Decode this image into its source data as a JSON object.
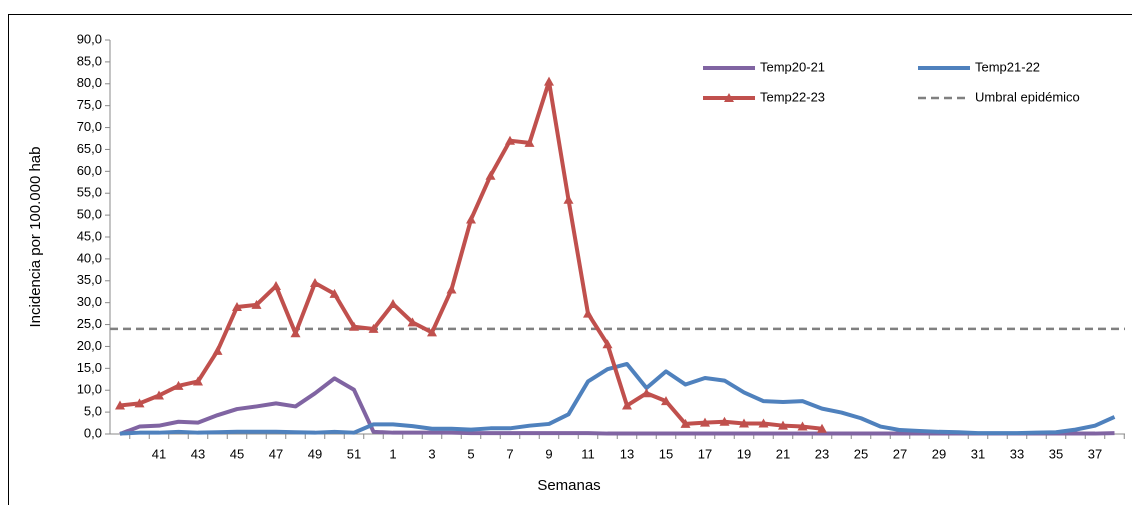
{
  "chart_data": {
    "type": "line",
    "xlabel": "Semanas",
    "ylabel": "Incidencia por 100.000 hab",
    "categories": [
      null,
      null,
      "41",
      null,
      "43",
      null,
      "45",
      null,
      "47",
      null,
      "49",
      null,
      "51",
      null,
      "1",
      null,
      "3",
      null,
      "5",
      null,
      "7",
      null,
      "9",
      null,
      "11",
      null,
      "13",
      null,
      "15",
      null,
      "17",
      null,
      "19",
      null,
      "21",
      null,
      "23",
      null,
      "25",
      null,
      "27",
      null,
      "29",
      null,
      "31",
      null,
      "33",
      null,
      "35",
      null,
      "37",
      null
    ],
    "series": [
      {
        "name": "Temp20-21",
        "color": "#8064a2",
        "marker": "none",
        "values": [
          0,
          1.7,
          1.9,
          2.8,
          2.6,
          4.3,
          5.7,
          6.3,
          7,
          6.3,
          9.3,
          12.7,
          10.1,
          0.5,
          0.3,
          0.3,
          0.3,
          0.3,
          0.2,
          0.2,
          0.2,
          0.2,
          0.2,
          0.2,
          0.2,
          0.1,
          0.1,
          0.1,
          0.1,
          0.1,
          0.1,
          0.1,
          0.1,
          0.1,
          0.1,
          0.1,
          0.1,
          0.1,
          0.1,
          0.1,
          0.1,
          0.1,
          0.1,
          0.1,
          0.1,
          0.1,
          0.1,
          0.1,
          0.1,
          0.1,
          0.1,
          0.2
        ]
      },
      {
        "name": "Temp21-22",
        "color": "#4f81bd",
        "marker": "none",
        "values": [
          0.1,
          0.3,
          0.3,
          0.5,
          0.3,
          0.4,
          0.5,
          0.5,
          0.5,
          0.4,
          0.3,
          0.5,
          0.3,
          2.2,
          2.2,
          1.8,
          1.2,
          1.2,
          1.0,
          1.3,
          1.3,
          1.9,
          2.3,
          4.5,
          12,
          14.8,
          16,
          10.5,
          14.3,
          11.3,
          12.8,
          12.2,
          9.5,
          7.5,
          7.3,
          7.5,
          5.8,
          4.9,
          3.6,
          1.7,
          0.9,
          0.7,
          0.5,
          0.4,
          0.2,
          0.2,
          0.2,
          0.3,
          0.4,
          1.0,
          1.9,
          3.9
        ]
      },
      {
        "name": "Temp22-23",
        "color": "#c0504d",
        "marker": "triangle",
        "values": [
          6.5,
          7,
          8.8,
          11,
          12,
          19,
          29,
          29.5,
          33.8,
          23,
          34.5,
          32,
          24.5,
          24,
          29.7,
          25.5,
          23.2,
          33,
          49,
          59,
          67,
          66.5,
          80.5,
          53.5,
          27.5,
          20.5,
          6.5,
          9.3,
          7.5,
          2.3,
          2.6,
          2.8,
          2.4,
          2.4,
          1.9,
          1.7,
          1.2,
          null,
          null,
          null,
          null,
          null,
          null,
          null,
          null,
          null,
          null,
          null,
          null,
          null,
          null,
          null
        ]
      }
    ],
    "threshold": {
      "name": "Umbral epidémico",
      "value": 24,
      "color": "#808080"
    },
    "ylim": [
      0,
      90
    ],
    "yticks": [
      {
        "value": 0,
        "label": "0,0"
      },
      {
        "value": 5,
        "label": "5,0"
      },
      {
        "value": 10,
        "label": "10,0"
      },
      {
        "value": 15,
        "label": "15,0"
      },
      {
        "value": 20,
        "label": "20,0"
      },
      {
        "value": 25,
        "label": "25,0"
      },
      {
        "value": 30,
        "label": "30,0"
      },
      {
        "value": 35,
        "label": "35,0"
      },
      {
        "value": 40,
        "label": "40,0"
      },
      {
        "value": 45,
        "label": "45,0"
      },
      {
        "value": 50,
        "label": "50,0"
      },
      {
        "value": 55,
        "label": "55,0"
      },
      {
        "value": 60,
        "label": "60,0"
      },
      {
        "value": 65,
        "label": "65,0"
      },
      {
        "value": 70,
        "label": "70,0"
      },
      {
        "value": 75,
        "label": "75,0"
      },
      {
        "value": 80,
        "label": "80,0"
      },
      {
        "value": 85,
        "label": "85,0"
      },
      {
        "value": 90,
        "label": "90,0"
      }
    ],
    "grid": false,
    "legend": "top-right"
  }
}
